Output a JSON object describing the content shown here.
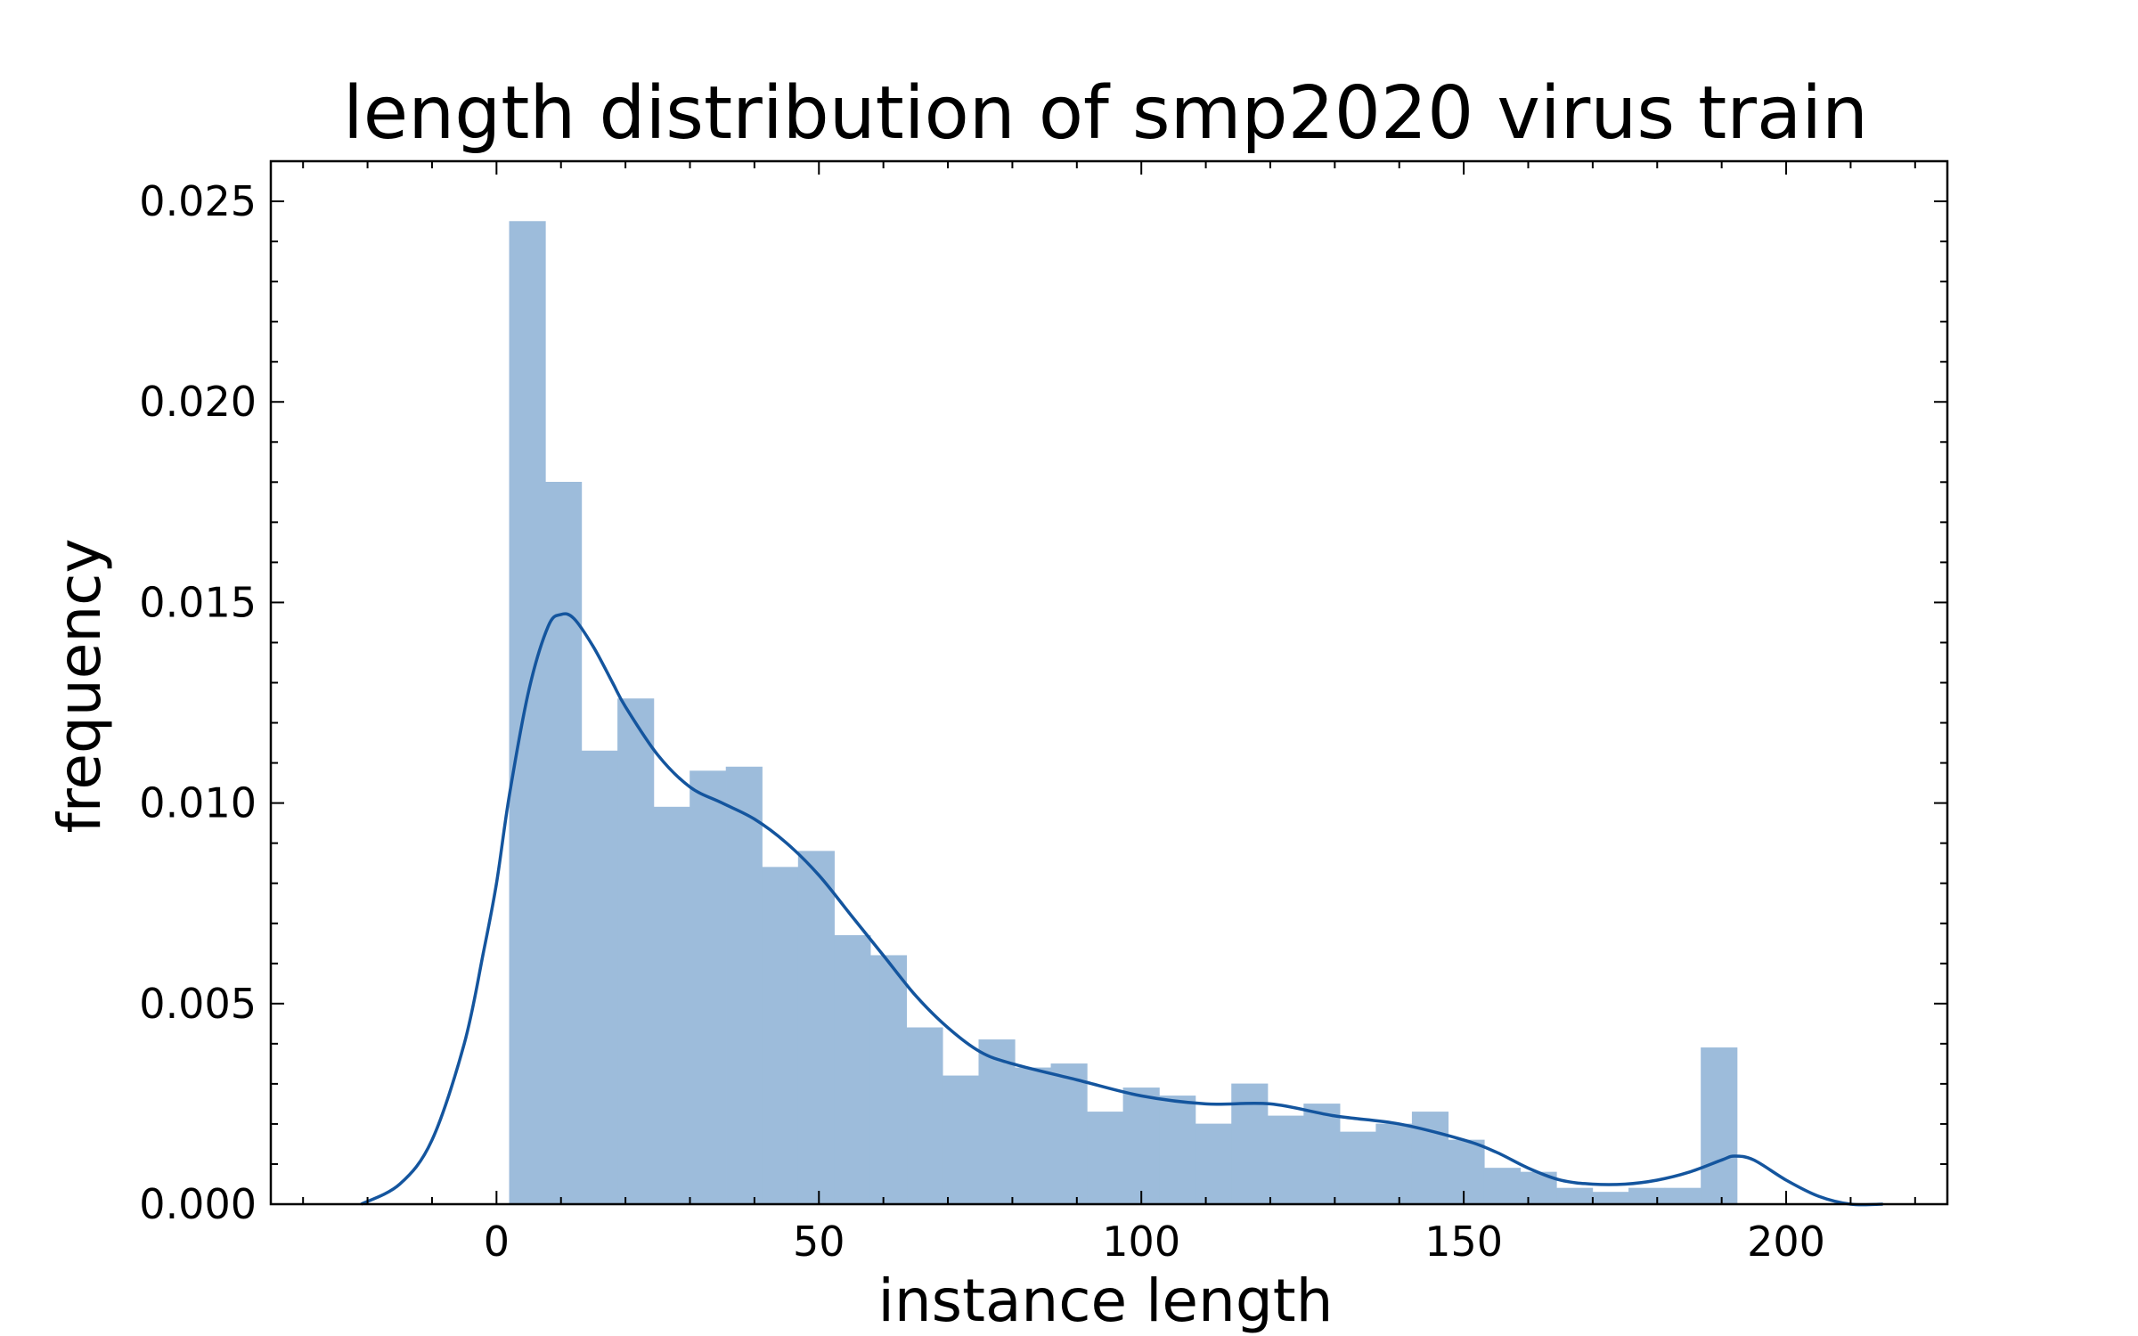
{
  "chart_data": {
    "type": "bar",
    "title": "length distribution of smp2020 virus train",
    "xlabel": "instance length",
    "ylabel": "frequency",
    "xlim": [
      -35,
      225
    ],
    "ylim": [
      0,
      0.026
    ],
    "xticks": [
      0,
      50,
      100,
      150,
      200
    ],
    "yticks": [
      0.0,
      0.005,
      0.01,
      0.015,
      0.02,
      0.025
    ],
    "xtick_labels": [
      "0",
      "50",
      "100",
      "150",
      "200"
    ],
    "ytick_labels": [
      "0.000",
      "0.005",
      "0.010",
      "0.015",
      "0.020",
      "0.025"
    ],
    "grid": false,
    "bar_color": "#9dbcdb",
    "kde_color": "#14559e",
    "bins": {
      "edges": [
        2,
        7.6,
        13.2,
        18.8,
        24.4,
        30.0,
        35.6,
        41.2,
        46.8,
        52.4,
        58.0,
        63.6,
        69.2,
        74.8,
        80.4,
        86.0,
        91.6,
        97.2,
        102.8,
        108.4,
        114.0,
        119.6,
        125.2,
        130.8,
        136.4,
        142.0,
        147.6,
        153.2,
        158.8,
        164.4,
        170.0,
        175.6,
        181.2,
        186.8,
        192.4
      ],
      "values": [
        0.0245,
        0.018,
        0.0113,
        0.0126,
        0.0099,
        0.0108,
        0.0109,
        0.0084,
        0.0088,
        0.0067,
        0.0062,
        0.0044,
        0.0032,
        0.0041,
        0.0034,
        0.0035,
        0.0023,
        0.0029,
        0.0027,
        0.002,
        0.003,
        0.0022,
        0.0025,
        0.0018,
        0.002,
        0.0023,
        0.0016,
        0.0009,
        0.0008,
        0.0004,
        0.0003,
        0.0004,
        0.0004,
        0.0039
      ]
    },
    "kde": {
      "x": [
        -21,
        -15,
        -10,
        -5,
        -2,
        0,
        2,
        5,
        8,
        10,
        12,
        15,
        18,
        20,
        25,
        30,
        35,
        40,
        45,
        50,
        55,
        60,
        65,
        70,
        75,
        80,
        90,
        100,
        110,
        120,
        130,
        140,
        150,
        155,
        160,
        165,
        170,
        175,
        180,
        185,
        190,
        192,
        195,
        200,
        205,
        210,
        215
      ],
      "y": [
        0.0,
        0.0005,
        0.0016,
        0.004,
        0.0063,
        0.008,
        0.0102,
        0.0128,
        0.0144,
        0.0147,
        0.0146,
        0.0139,
        0.013,
        0.0124,
        0.0112,
        0.0104,
        0.01,
        0.0096,
        0.009,
        0.0082,
        0.0072,
        0.0062,
        0.0052,
        0.0044,
        0.0038,
        0.0035,
        0.0031,
        0.0027,
        0.0025,
        0.0025,
        0.0022,
        0.002,
        0.0016,
        0.0013,
        0.0009,
        0.0006,
        0.0005,
        0.0005,
        0.0006,
        0.0008,
        0.0011,
        0.0012,
        0.0011,
        0.0006,
        0.0002,
        0.0,
        0.0
      ]
    }
  }
}
